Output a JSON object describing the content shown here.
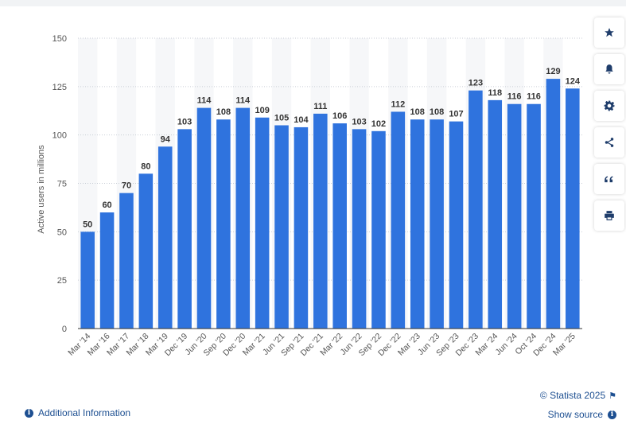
{
  "chart_data": {
    "type": "bar",
    "categories": [
      "Mar '14",
      "Mar '16",
      "Mar '17",
      "Mar '18",
      "Mar '19",
      "Dec '19",
      "Jun '20",
      "Sep '20",
      "Dec '20",
      "Mar '21",
      "Jun '21",
      "Sep '21",
      "Dec '21",
      "Mar '22",
      "Jun '22",
      "Sep '22",
      "Dec '22",
      "Mar '23",
      "Jun '23",
      "Sep '23",
      "Dec '23",
      "Mar '24",
      "Jun '24",
      "Oct '24",
      "Dec '24",
      "Mar '25"
    ],
    "values": [
      50,
      60,
      70,
      80,
      94,
      103,
      114,
      108,
      114,
      109,
      105,
      104,
      111,
      106,
      103,
      102,
      112,
      108,
      108,
      107,
      123,
      118,
      116,
      116,
      129,
      124
    ],
    "ylabel": "Active users in millions",
    "xlabel": "",
    "ylim": [
      0,
      150
    ],
    "yticks": [
      0,
      25,
      50,
      75,
      100,
      125,
      150
    ],
    "grid": true,
    "bar_color": "#2f73de"
  },
  "toolbar": {
    "buttons": [
      "star-icon",
      "bell-icon",
      "gear-icon",
      "share-icon",
      "quote-icon",
      "print-icon"
    ]
  },
  "footer": {
    "copyright": "© Statista 2025",
    "show_source": "Show source",
    "additional_info": "Additional Information"
  }
}
